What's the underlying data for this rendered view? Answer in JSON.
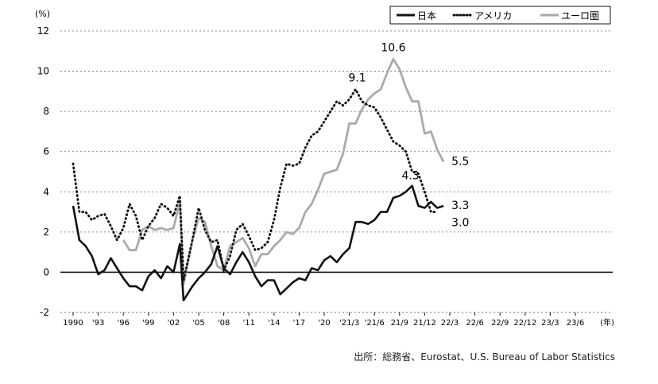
{
  "chart_data": {
    "type": "line",
    "unit_label": "(%)",
    "x_unit_label": "(年)",
    "source": "出所：総務省、Eurostat、U.S. Bureau of Labor Statistics",
    "ylim": [
      -2,
      12
    ],
    "yticks": [
      "-2",
      "0",
      "2",
      "4",
      "6",
      "8",
      "10",
      "12"
    ],
    "xtick_labels": [
      "1990",
      "'93",
      "'96",
      "'99",
      "'02",
      "'05",
      "'08",
      "'11",
      "'14",
      "'17",
      "'20",
      "'21/3",
      "'21/6",
      "21/9",
      "21/12",
      "22/3",
      "22/6",
      "22/9",
      "22/12",
      "23/3",
      "23/6"
    ],
    "grid": "horizontal-dotted",
    "legend_position": "top-right",
    "colors": {
      "japan": "#111111",
      "usa": "#111111",
      "euro": "#aaaaaa"
    },
    "series": [
      {
        "name": "日本",
        "style": "solid-black",
        "points": [
          [
            0,
            3.3
          ],
          [
            0.25,
            1.6
          ],
          [
            0.5,
            1.3
          ],
          [
            0.75,
            0.8
          ],
          [
            1,
            -0.1
          ],
          [
            1.25,
            0.1
          ],
          [
            1.5,
            0.7
          ],
          [
            1.75,
            0.2
          ],
          [
            2,
            -0.3
          ],
          [
            2.25,
            -0.7
          ],
          [
            2.5,
            -0.7
          ],
          [
            2.75,
            -0.9
          ],
          [
            3,
            -0.2
          ],
          [
            3.25,
            0.1
          ],
          [
            3.5,
            -0.3
          ],
          [
            3.75,
            0.3
          ],
          [
            4,
            0
          ],
          [
            4.25,
            1.4
          ],
          [
            4.4,
            -1.4
          ],
          [
            4.75,
            -0.7
          ],
          [
            5,
            -0.3
          ],
          [
            5.25,
            0
          ],
          [
            5.5,
            0.4
          ],
          [
            5.75,
            1.3
          ],
          [
            6,
            0.2
          ],
          [
            6.25,
            -0.1
          ],
          [
            6.5,
            0.5
          ],
          [
            6.75,
            1
          ],
          [
            7,
            0.5
          ],
          [
            7.25,
            -0.2
          ],
          [
            7.5,
            -0.7
          ],
          [
            7.75,
            -0.4
          ],
          [
            8,
            -0.4
          ],
          [
            8.25,
            -1.1
          ],
          [
            8.5,
            -0.8
          ],
          [
            8.75,
            -0.5
          ],
          [
            9,
            -0.3
          ],
          [
            9.25,
            -0.4
          ],
          [
            9.5,
            0.2
          ],
          [
            9.75,
            0.1
          ],
          [
            10,
            0.6
          ],
          [
            10.25,
            0.8
          ],
          [
            10.5,
            0.5
          ],
          [
            10.75,
            0.9
          ],
          [
            11,
            1.2
          ],
          [
            11.25,
            2.5
          ],
          [
            11.5,
            2.5
          ],
          [
            11.75,
            2.4
          ],
          [
            12,
            2.6
          ],
          [
            12.25,
            3
          ],
          [
            12.5,
            3
          ],
          [
            12.75,
            3.7
          ],
          [
            13,
            3.8
          ],
          [
            13.25,
            4
          ],
          [
            13.5,
            4.3
          ],
          [
            13.75,
            3.3
          ],
          [
            14,
            3.2
          ],
          [
            14.25,
            3.5
          ],
          [
            14.5,
            3.2
          ],
          [
            14.75,
            3.3
          ]
        ]
      },
      {
        "name": "アメリカ",
        "style": "dotted-black",
        "points": [
          [
            0,
            5.4
          ],
          [
            0.25,
            3
          ],
          [
            0.5,
            3
          ],
          [
            0.75,
            2.6
          ],
          [
            1,
            2.8
          ],
          [
            1.25,
            2.9
          ],
          [
            1.5,
            2.3
          ],
          [
            1.75,
            1.6
          ],
          [
            2,
            2.2
          ],
          [
            2.25,
            3.4
          ],
          [
            2.5,
            2.8
          ],
          [
            2.75,
            1.6
          ],
          [
            3,
            2.3
          ],
          [
            3.25,
            2.7
          ],
          [
            3.5,
            3.4
          ],
          [
            3.75,
            3.2
          ],
          [
            4,
            2.8
          ],
          [
            4.25,
            3.8
          ],
          [
            4.4,
            -0.4
          ],
          [
            4.75,
            1.6
          ],
          [
            5,
            3.2
          ],
          [
            5.25,
            2.1
          ],
          [
            5.5,
            1.5
          ],
          [
            5.75,
            1.6
          ],
          [
            6,
            0.1
          ],
          [
            6.25,
            0.8
          ],
          [
            6.5,
            2.1
          ],
          [
            6.75,
            2.4
          ],
          [
            7,
            1.8
          ],
          [
            7.25,
            1.1
          ],
          [
            7.5,
            1.2
          ],
          [
            7.75,
            1.5
          ],
          [
            8,
            2.6
          ],
          [
            8.25,
            4.2
          ],
          [
            8.5,
            5.4
          ],
          [
            8.75,
            5.3
          ],
          [
            9,
            5.4
          ],
          [
            9.25,
            6.2
          ],
          [
            9.5,
            6.8
          ],
          [
            9.75,
            7
          ],
          [
            10,
            7.5
          ],
          [
            10.25,
            8
          ],
          [
            10.5,
            8.5
          ],
          [
            10.75,
            8.3
          ],
          [
            11,
            8.6
          ],
          [
            11.25,
            9.1
          ],
          [
            11.5,
            8.5
          ],
          [
            11.75,
            8.3
          ],
          [
            12,
            8.2
          ],
          [
            12.25,
            7.7
          ],
          [
            12.5,
            7.1
          ],
          [
            12.75,
            6.5
          ],
          [
            13,
            6.3
          ],
          [
            13.25,
            6
          ],
          [
            13.5,
            5
          ],
          [
            13.75,
            4.9
          ],
          [
            14,
            4
          ],
          [
            14.25,
            3
          ],
          [
            14.5,
            3
          ]
        ]
      },
      {
        "name": "ユーロ圏",
        "style": "solid-gray",
        "points": [
          [
            2,
            1.6
          ],
          [
            2.25,
            1.1
          ],
          [
            2.5,
            1.1
          ],
          [
            2.75,
            2.1
          ],
          [
            3,
            2.3
          ],
          [
            3.25,
            2.1
          ],
          [
            3.5,
            2.2
          ],
          [
            3.75,
            2.1
          ],
          [
            4,
            2.2
          ],
          [
            4.25,
            3.5
          ],
          [
            4.4,
            -0.6
          ],
          [
            4.75,
            1.6
          ],
          [
            5,
            2.7
          ],
          [
            5.25,
            2.5
          ],
          [
            5.5,
            1.3
          ],
          [
            5.75,
            0.3
          ],
          [
            6,
            0.1
          ],
          [
            6.25,
            1.3
          ],
          [
            6.5,
            1.5
          ],
          [
            6.75,
            1.7
          ],
          [
            7,
            1.2
          ],
          [
            7.25,
            0.3
          ],
          [
            7.5,
            0.9
          ],
          [
            7.75,
            0.9
          ],
          [
            8,
            1.3
          ],
          [
            8.25,
            1.6
          ],
          [
            8.5,
            2
          ],
          [
            8.75,
            1.9
          ],
          [
            9,
            2.2
          ],
          [
            9.25,
            3
          ],
          [
            9.5,
            3.4
          ],
          [
            9.75,
            4.1
          ],
          [
            10,
            4.9
          ],
          [
            10.25,
            5
          ],
          [
            10.5,
            5.1
          ],
          [
            10.75,
            5.9
          ],
          [
            11,
            7.4
          ],
          [
            11.25,
            7.4
          ],
          [
            11.5,
            8.1
          ],
          [
            11.75,
            8.6
          ],
          [
            12,
            8.9
          ],
          [
            12.25,
            9.1
          ],
          [
            12.5,
            9.9
          ],
          [
            12.75,
            10.6
          ],
          [
            13,
            10.1
          ],
          [
            13.25,
            9.2
          ],
          [
            13.5,
            8.5
          ],
          [
            13.75,
            8.5
          ],
          [
            14,
            6.9
          ],
          [
            14.25,
            7
          ],
          [
            14.5,
            6.1
          ],
          [
            14.75,
            5.5
          ]
        ]
      }
    ],
    "annotations": [
      {
        "label": "10.6",
        "x": 12.75,
        "y": 10.6
      },
      {
        "label": "9.1",
        "x": 11.25,
        "y": 9.1
      },
      {
        "label": "4.3",
        "x": 13.5,
        "y": 4.3
      },
      {
        "label": "5.5",
        "x": 14.75,
        "y": 5.5
      },
      {
        "label": "3.3",
        "x": 14.75,
        "y": 3.3
      },
      {
        "label": "3.0",
        "x": 14.75,
        "y": 3.0
      }
    ]
  }
}
